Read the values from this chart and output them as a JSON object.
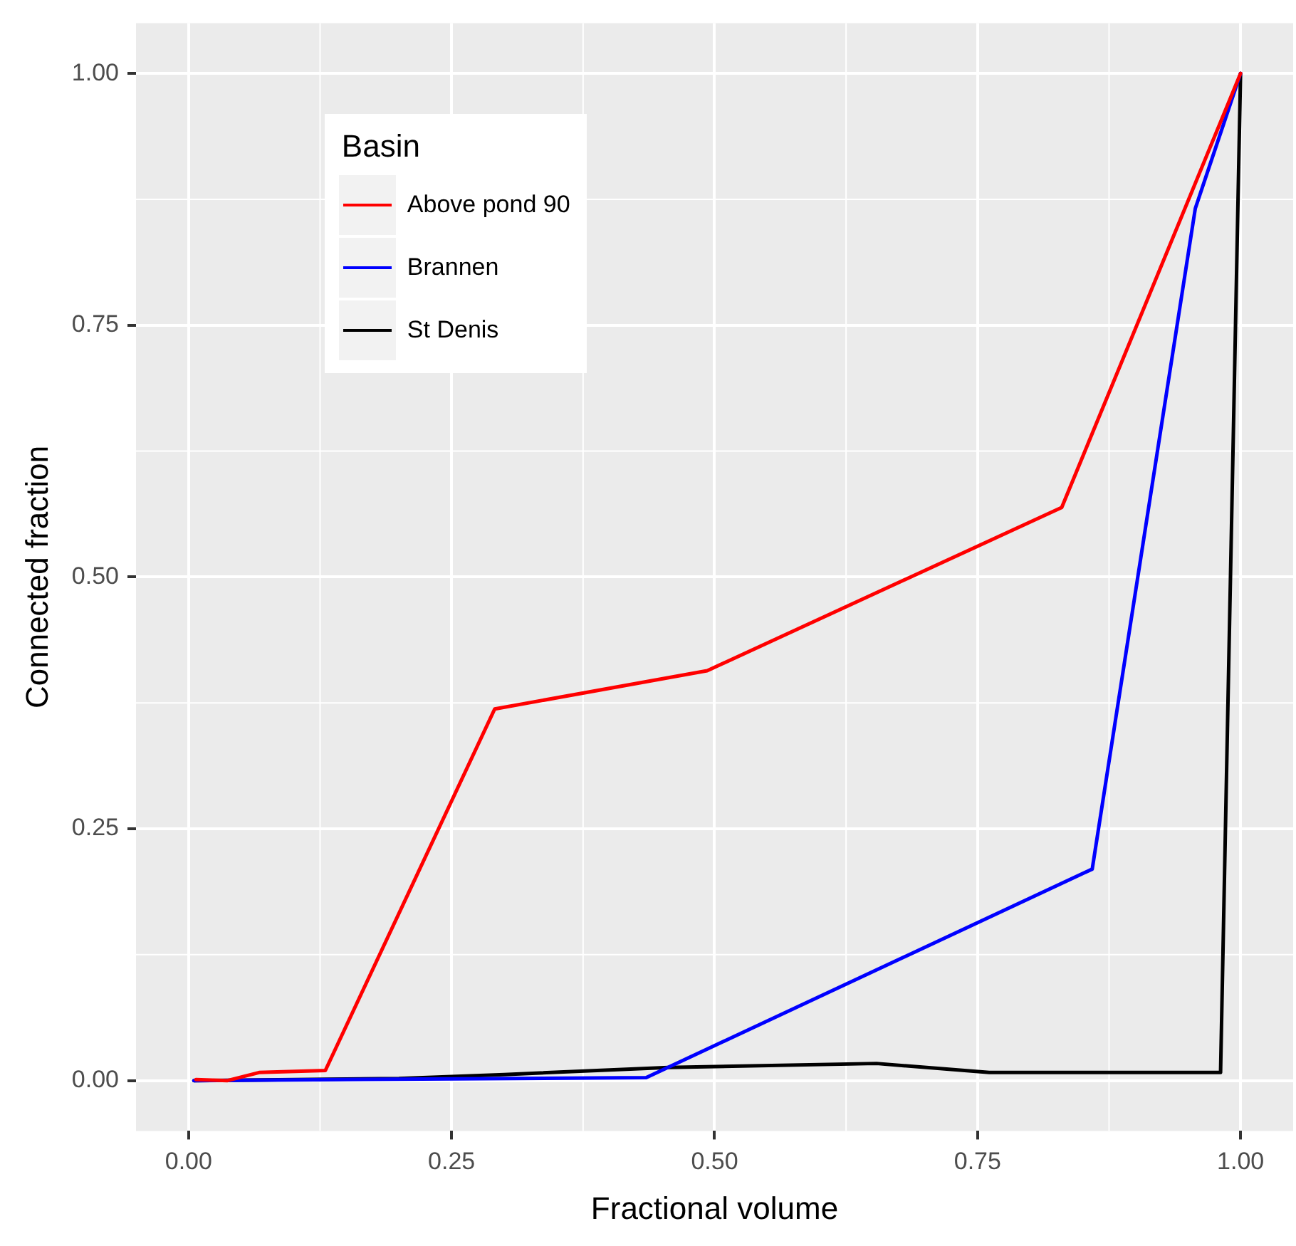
{
  "chart_data": {
    "type": "line",
    "xlabel": "Fractional volume",
    "ylabel": "Connected fraction",
    "legend_title": "Basin",
    "legend": "top left",
    "grid": true,
    "marker": "none",
    "line_style": "solid",
    "xlim": [
      -0.05,
      1.05
    ],
    "xticks": [
      {
        "value": 0,
        "label": "0.00"
      },
      {
        "value": 0.25,
        "label": "0.25"
      },
      {
        "value": 0.5,
        "label": "0.50"
      },
      {
        "value": 0.75,
        "label": "0.75"
      },
      {
        "value": 1,
        "label": "1.00"
      }
    ],
    "ylim": [
      -0.05,
      1.05
    ],
    "yticks": [
      {
        "value": 0,
        "label": "0.00"
      },
      {
        "value": 0.25,
        "label": "0.25"
      },
      {
        "value": 0.5,
        "label": "0.50"
      },
      {
        "value": 0.75,
        "label": "0.75"
      },
      {
        "value": 1,
        "label": "1.00"
      }
    ],
    "series": [
      {
        "name": "Above pond 90",
        "color": "#ff0000",
        "x": [
          0.007,
          0.037,
          0.067,
          0.13,
          0.291,
          0.493,
          0.83,
          1
        ],
        "values": [
          0.001,
          0,
          0.008,
          0.01,
          0.369,
          0.407,
          0.569,
          1
        ]
      },
      {
        "name": "Brannen",
        "color": "#0000ff",
        "x": [
          0.005,
          0.435,
          0.859,
          0.957,
          1
        ],
        "values": [
          0,
          0.003,
          0.21,
          0.866,
          1
        ]
      },
      {
        "name": "St Denis",
        "color": "#000000",
        "x": [
          0.005,
          0.2,
          0.3,
          0.456,
          0.654,
          0.761,
          0.981,
          1
        ],
        "values": [
          0,
          0.002,
          0.006,
          0.013,
          0.017,
          0.008,
          0.008,
          1
        ]
      }
    ]
  }
}
